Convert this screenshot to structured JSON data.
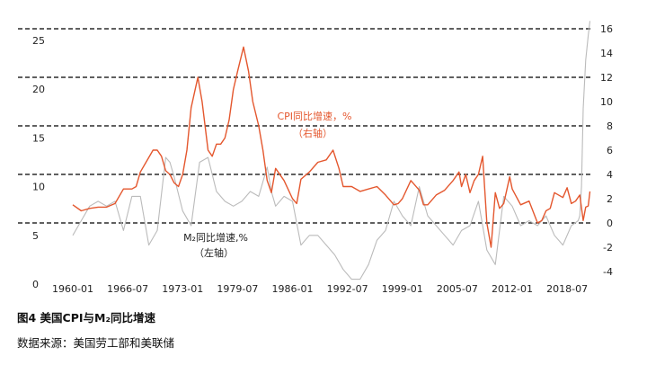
{
  "figure": {
    "title": "图4  美国CPI与M₂同比增速",
    "source": "数据来源：美国劳工部和美联储"
  },
  "chart_data": {
    "type": "line",
    "x_tick_labels": [
      "1960-01",
      "1966-07",
      "1973-01",
      "1979-07",
      "1986-01",
      "1992-07",
      "1999-01",
      "2005-07",
      "2012-01",
      "2018-07"
    ],
    "x_range": [
      "1960-01",
      "2021-03"
    ],
    "left_axis": {
      "ylim": [
        0,
        25
      ],
      "ticks": [
        0,
        5,
        10,
        15,
        20,
        25
      ]
    },
    "right_axis": {
      "ylim": [
        -4,
        16
      ],
      "ticks": [
        -4,
        -2,
        0,
        2,
        4,
        6,
        8,
        10,
        12,
        14,
        16
      ]
    },
    "grid": "dashed horizontal lines at right-axis 0, 4, 8, 12, 16",
    "series": [
      {
        "name": "CPI同比增速，%",
        "label_line2": "（右轴）",
        "axis": "right",
        "color": "#E4572E",
        "x": [
          1960.0,
          1961.0,
          1962.0,
          1963.0,
          1964.0,
          1965.0,
          1966.0,
          1967.0,
          1967.5,
          1968.0,
          1969.0,
          1969.5,
          1970.0,
          1970.5,
          1971.0,
          1971.5,
          1972.0,
          1972.5,
          1973.0,
          1973.5,
          1974.0,
          1974.8,
          1975.3,
          1976.0,
          1976.5,
          1977.0,
          1977.5,
          1978.0,
          1978.5,
          1979.0,
          1979.5,
          1980.2,
          1980.8,
          1981.3,
          1982.0,
          1982.5,
          1983.0,
          1983.5,
          1984.0,
          1985.0,
          1986.0,
          1986.5,
          1987.0,
          1988.0,
          1989.0,
          1990.0,
          1990.8,
          1991.5,
          1992.0,
          1993.0,
          1994.0,
          1995.0,
          1996.0,
          1997.0,
          1998.0,
          1998.5,
          1999.0,
          2000.0,
          2001.0,
          2001.5,
          2002.0,
          2003.0,
          2004.0,
          2005.0,
          2005.7,
          2006.0,
          2006.5,
          2007.0,
          2007.5,
          2008.0,
          2008.5,
          2009.0,
          2009.5,
          2010.0,
          2010.5,
          2011.0,
          2011.7,
          2012.0,
          2013.0,
          2014.0,
          2015.0,
          2015.5,
          2016.0,
          2016.5,
          2017.0,
          2018.0,
          2018.5,
          2019.0,
          2019.5,
          2020.0,
          2020.4,
          2020.7,
          2021.0,
          2021.2
        ],
        "values": [
          1.5,
          1.0,
          1.2,
          1.3,
          1.3,
          1.6,
          2.8,
          2.8,
          3.0,
          4.2,
          5.4,
          6.0,
          6.0,
          5.5,
          4.3,
          4.0,
          3.3,
          3.0,
          4.0,
          6.0,
          9.5,
          12.0,
          10.0,
          6.0,
          5.5,
          6.5,
          6.5,
          7.0,
          8.5,
          11.0,
          12.5,
          14.5,
          12.5,
          10.0,
          8.0,
          6.0,
          3.5,
          2.5,
          4.5,
          3.5,
          2.0,
          1.6,
          3.6,
          4.2,
          5.0,
          5.2,
          6.0,
          4.5,
          3.0,
          3.0,
          2.6,
          2.8,
          3.0,
          2.3,
          1.5,
          1.6,
          2.0,
          3.5,
          2.7,
          1.5,
          1.5,
          2.3,
          2.7,
          3.5,
          4.2,
          3.0,
          4.0,
          2.5,
          3.5,
          4.0,
          5.5,
          0.0,
          -2.0,
          2.5,
          1.2,
          1.6,
          3.8,
          2.8,
          1.5,
          1.8,
          0.0,
          0.2,
          1.0,
          1.2,
          2.5,
          2.1,
          2.9,
          1.6,
          1.8,
          2.3,
          0.2,
          1.3,
          1.4,
          2.6
        ]
      },
      {
        "name": "M₂同比增速,%",
        "label_line2": "（左轴）",
        "axis": "left",
        "color": "#BBBBBB",
        "x": [
          1960.0,
          1961.0,
          1962.0,
          1963.0,
          1964.0,
          1965.0,
          1966.0,
          1967.0,
          1968.0,
          1969.0,
          1970.0,
          1971.0,
          1971.5,
          1972.0,
          1973.0,
          1974.0,
          1975.0,
          1976.0,
          1977.0,
          1978.0,
          1979.0,
          1980.0,
          1981.0,
          1982.0,
          1983.0,
          1983.5,
          1984.0,
          1985.0,
          1986.0,
          1987.0,
          1988.0,
          1989.0,
          1990.0,
          1991.0,
          1992.0,
          1993.0,
          1994.0,
          1995.0,
          1996.0,
          1997.0,
          1998.0,
          1999.0,
          2000.0,
          2001.0,
          2002.0,
          2003.0,
          2004.0,
          2005.0,
          2006.0,
          2007.0,
          2008.0,
          2009.0,
          2010.0,
          2011.0,
          2012.0,
          2013.0,
          2014.0,
          2015.0,
          2016.0,
          2017.0,
          2018.0,
          2019.0,
          2019.8,
          2020.0,
          2020.2,
          2020.4,
          2020.7,
          2021.0,
          2021.2
        ],
        "values": [
          5.0,
          6.5,
          8.0,
          8.5,
          8.0,
          8.5,
          5.5,
          9.0,
          9.0,
          4.0,
          5.5,
          13.0,
          12.5,
          11.0,
          7.5,
          6.0,
          12.5,
          13.0,
          9.5,
          8.5,
          8.0,
          8.5,
          9.5,
          9.0,
          12.0,
          9.5,
          8.0,
          9.0,
          8.5,
          4.0,
          5.0,
          5.0,
          4.0,
          3.0,
          1.5,
          0.5,
          0.5,
          2.0,
          4.5,
          5.5,
          8.5,
          7.0,
          6.0,
          10.0,
          7.0,
          6.0,
          5.0,
          4.0,
          5.5,
          6.0,
          8.5,
          3.5,
          2.0,
          9.0,
          8.0,
          6.0,
          6.5,
          6.0,
          7.0,
          5.0,
          4.0,
          6.0,
          6.5,
          7.0,
          10.0,
          18.0,
          23.0,
          25.5,
          27.0
        ]
      }
    ]
  }
}
